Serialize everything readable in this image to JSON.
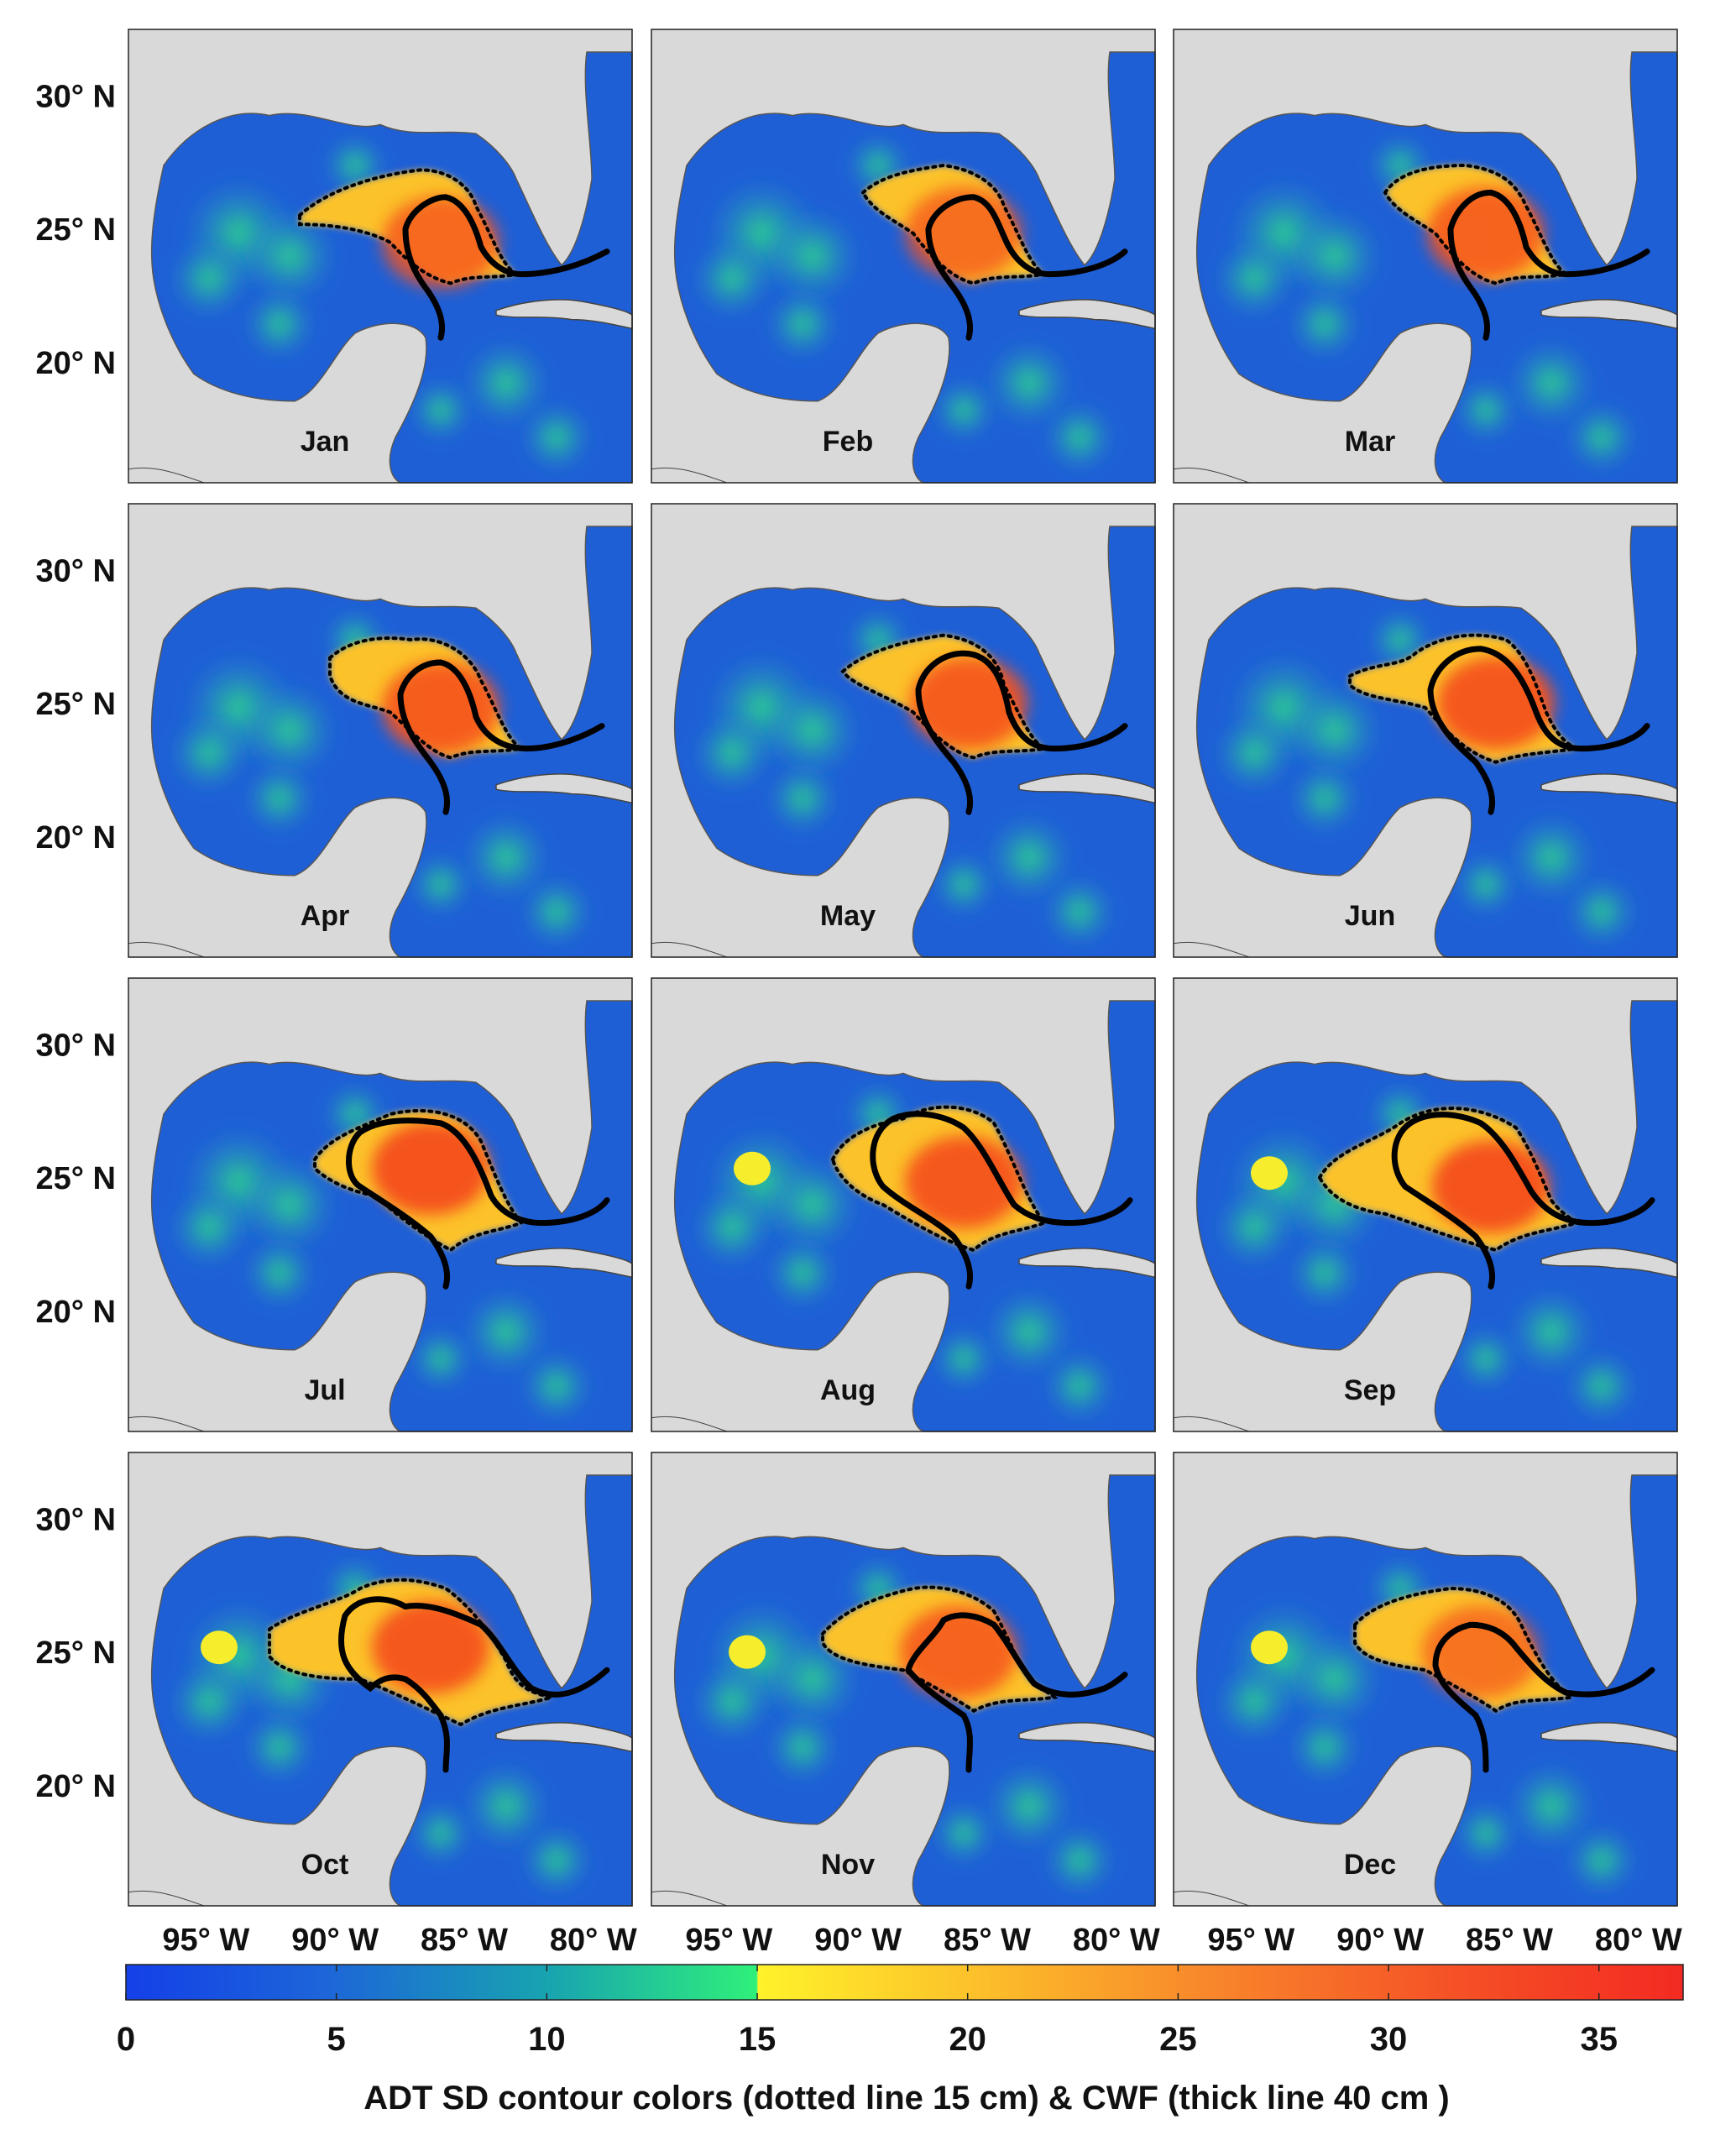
{
  "chart_data": {
    "type": "heatmap",
    "layout": "4x3 small multiples (monthly climatology maps, Gulf of Mexico)",
    "panels": [
      "Jan",
      "Feb",
      "Mar",
      "Apr",
      "May",
      "Jun",
      "Jul",
      "Aug",
      "Sep",
      "Oct",
      "Nov",
      "Dec"
    ],
    "y_ticks": [
      {
        "value": 30,
        "label": "30° N"
      },
      {
        "value": 25,
        "label": "25° N"
      },
      {
        "value": 20,
        "label": "20° N"
      }
    ],
    "x_ticks": [
      {
        "value": -95,
        "label": "95° W"
      },
      {
        "value": -90,
        "label": "90° W"
      },
      {
        "value": -85,
        "label": "85° W"
      },
      {
        "value": -80,
        "label": "80° W"
      }
    ],
    "xlim": [
      -98,
      -78.5
    ],
    "ylim": [
      15.5,
      32.5
    ],
    "colorbar": {
      "min": 0,
      "max": 37,
      "ticks": [
        0,
        5,
        10,
        15,
        20,
        25,
        30,
        35
      ],
      "unit": "cm"
    },
    "contour_levels": {
      "dotted": 15,
      "thick": 40
    },
    "colors": {
      "land": "#d9d9d9",
      "ocean_low": "#1a56d8",
      "ocean_mid": "#1fc98a",
      "hot": "#f5341e",
      "contour": "#000000"
    },
    "xlabel": "ADT SD contour colors (dotted line 15 cm) & CWF (thick line 40 cm )"
  }
}
